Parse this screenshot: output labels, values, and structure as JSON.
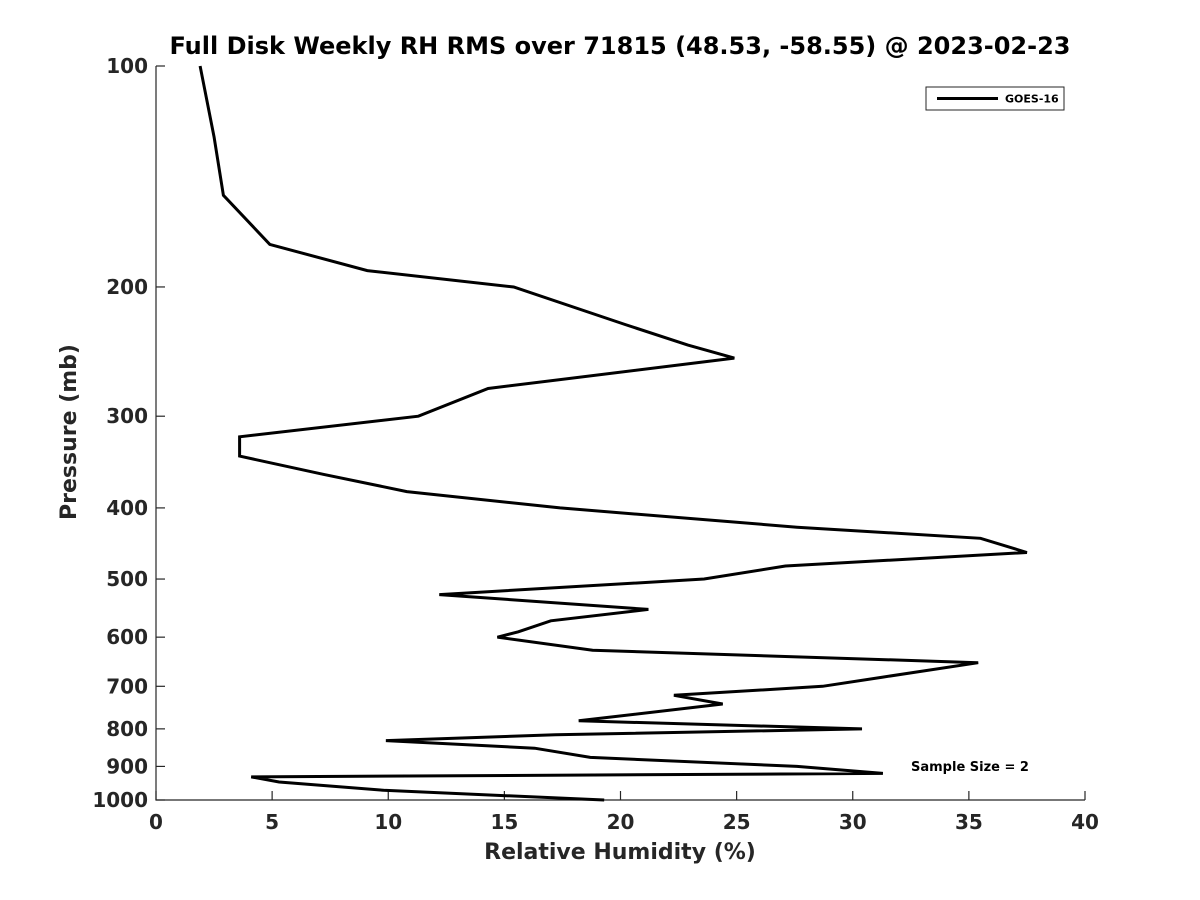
{
  "chart_data": {
    "type": "line",
    "title": "Full Disk Weekly RH RMS over 71815 (48.53, -58.55) @ 2023-02-23",
    "xlabel": "Relative Humidity (%)",
    "ylabel": "Pressure (mb)",
    "xlim": [
      0,
      40
    ],
    "ylim": [
      1000,
      100
    ],
    "yscale": "log",
    "xticks": [
      0,
      5,
      10,
      15,
      20,
      25,
      30,
      35,
      40
    ],
    "yticks": [
      100,
      200,
      300,
      400,
      500,
      600,
      700,
      800,
      900,
      1000
    ],
    "grid": false,
    "legend": {
      "entries": [
        "GOES-16"
      ],
      "placement": "top-right"
    },
    "annotations": [
      {
        "text": "Sample Size = 2",
        "placement": "bottom-right"
      }
    ],
    "series": [
      {
        "name": "GOES-16",
        "color": "#000000",
        "points": [
          [
            1.9,
            100
          ],
          [
            2.5,
            125
          ],
          [
            2.9,
            150
          ],
          [
            4.9,
            175
          ],
          [
            9.1,
            190
          ],
          [
            15.4,
            200
          ],
          [
            20.2,
            225
          ],
          [
            22.9,
            240
          ],
          [
            24.9,
            250
          ],
          [
            14.3,
            275
          ],
          [
            11.3,
            300
          ],
          [
            3.6,
            320
          ],
          [
            3.6,
            340
          ],
          [
            7.2,
            360
          ],
          [
            10.8,
            380
          ],
          [
            17.4,
            400
          ],
          [
            27.6,
            425
          ],
          [
            35.5,
            440
          ],
          [
            37.5,
            460
          ],
          [
            27.1,
            480
          ],
          [
            23.6,
            500
          ],
          [
            12.2,
            525
          ],
          [
            21.2,
            550
          ],
          [
            17.0,
            570
          ],
          [
            15.6,
            590
          ],
          [
            14.7,
            600
          ],
          [
            18.8,
            625
          ],
          [
            35.4,
            650
          ],
          [
            31.3,
            680
          ],
          [
            28.7,
            700
          ],
          [
            22.3,
            720
          ],
          [
            24.4,
            740
          ],
          [
            18.2,
            780
          ],
          [
            30.4,
            800
          ],
          [
            17.2,
            815
          ],
          [
            9.9,
            830
          ],
          [
            16.3,
            850
          ],
          [
            18.7,
            875
          ],
          [
            27.6,
            900
          ],
          [
            31.3,
            920
          ],
          [
            4.1,
            930
          ],
          [
            5.3,
            945
          ],
          [
            9.8,
            970
          ],
          [
            19.3,
            1000
          ]
        ]
      }
    ]
  }
}
